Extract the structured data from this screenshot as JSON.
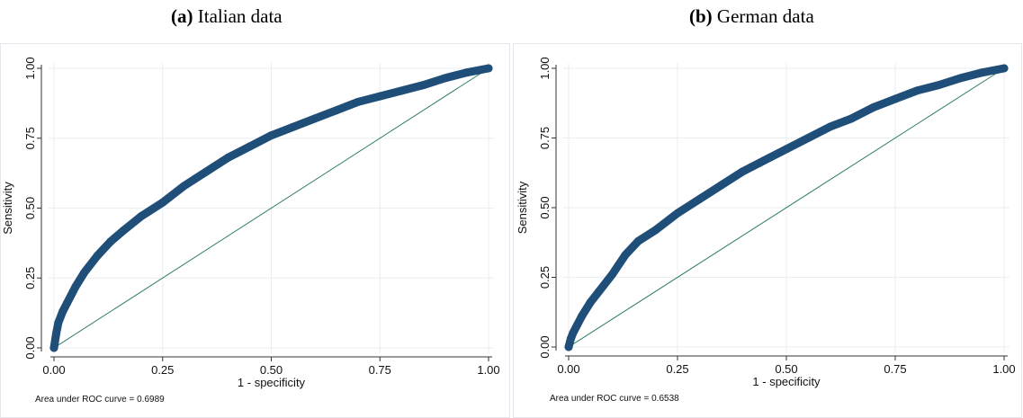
{
  "panels": [
    {
      "letter": "(a)",
      "name": "Italian data"
    },
    {
      "letter": "(b)",
      "name": "German data"
    }
  ],
  "colors": {
    "roc_curve": "#1f4e79",
    "reference_line": "#2e7d62",
    "grid": "#e9eef2",
    "axis": "#333333"
  },
  "chart_data": [
    {
      "type": "line",
      "title": "",
      "xlabel": "1 - specificity",
      "ylabel": "Sensitivity",
      "xlim": [
        0,
        1
      ],
      "ylim": [
        0,
        1
      ],
      "xticks": [
        "0.00",
        "0.25",
        "0.50",
        "0.75",
        "1.00"
      ],
      "yticks": [
        "0.00",
        "0.25",
        "0.50",
        "0.75",
        "1.00"
      ],
      "grid": true,
      "note": "Area under ROC curve = 0.6989",
      "series": [
        {
          "x": [
            0,
            0.005,
            0.01,
            0.02,
            0.03,
            0.05,
            0.07,
            0.1,
            0.13,
            0.16,
            0.2,
            0.25,
            0.3,
            0.35,
            0.4,
            0.45,
            0.5,
            0.55,
            0.6,
            0.65,
            0.7,
            0.75,
            0.8,
            0.85,
            0.9,
            0.95,
            1.0
          ],
          "y": [
            0,
            0.05,
            0.09,
            0.13,
            0.16,
            0.22,
            0.27,
            0.33,
            0.38,
            0.42,
            0.47,
            0.52,
            0.58,
            0.63,
            0.68,
            0.72,
            0.76,
            0.79,
            0.82,
            0.85,
            0.88,
            0.9,
            0.92,
            0.94,
            0.965,
            0.985,
            1.0
          ]
        },
        {
          "x": [
            0,
            1
          ],
          "y": [
            0,
            1
          ]
        }
      ]
    },
    {
      "type": "line",
      "title": "",
      "xlabel": "1 - specificity",
      "ylabel": "Sensitivity",
      "xlim": [
        0,
        1
      ],
      "ylim": [
        0,
        1
      ],
      "xticks": [
        "0.00",
        "0.25",
        "0.50",
        "0.75",
        "1.00"
      ],
      "yticks": [
        "0.00",
        "0.25",
        "0.50",
        "0.75",
        "1.00"
      ],
      "grid": true,
      "note": "Area under ROC curve = 0.6538",
      "series": [
        {
          "x": [
            0,
            0.005,
            0.01,
            0.02,
            0.03,
            0.05,
            0.07,
            0.1,
            0.13,
            0.16,
            0.2,
            0.25,
            0.3,
            0.35,
            0.4,
            0.45,
            0.5,
            0.55,
            0.6,
            0.65,
            0.7,
            0.75,
            0.8,
            0.85,
            0.9,
            0.95,
            1.0
          ],
          "y": [
            0,
            0.03,
            0.05,
            0.08,
            0.11,
            0.16,
            0.2,
            0.26,
            0.33,
            0.38,
            0.42,
            0.48,
            0.53,
            0.58,
            0.63,
            0.67,
            0.71,
            0.75,
            0.79,
            0.82,
            0.86,
            0.89,
            0.92,
            0.94,
            0.965,
            0.985,
            1.0
          ]
        },
        {
          "x": [
            0,
            1
          ],
          "y": [
            0,
            1
          ]
        }
      ]
    }
  ]
}
